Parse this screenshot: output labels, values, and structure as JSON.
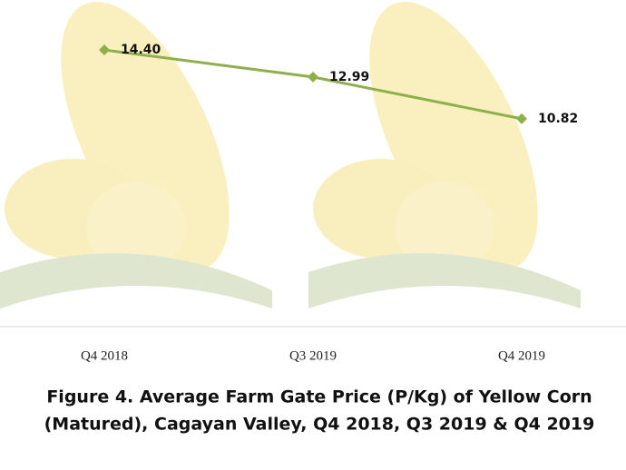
{
  "chart_data": {
    "type": "line",
    "title": [
      "Figure 4. Average Farm Gate Price (P/Kg) of Yellow Corn",
      "(Matured), Cagayan Valley, Q4 2018, Q3 2019 & Q4 2019"
    ],
    "categories": [
      "Q4 2018",
      "Q3 2019",
      "Q4 2019"
    ],
    "values": [
      14.4,
      12.99,
      10.82
    ],
    "value_labels": [
      "14.40",
      "12.99",
      "10.82"
    ],
    "color": "#8db04a",
    "ylim": [
      0,
      17
    ]
  }
}
